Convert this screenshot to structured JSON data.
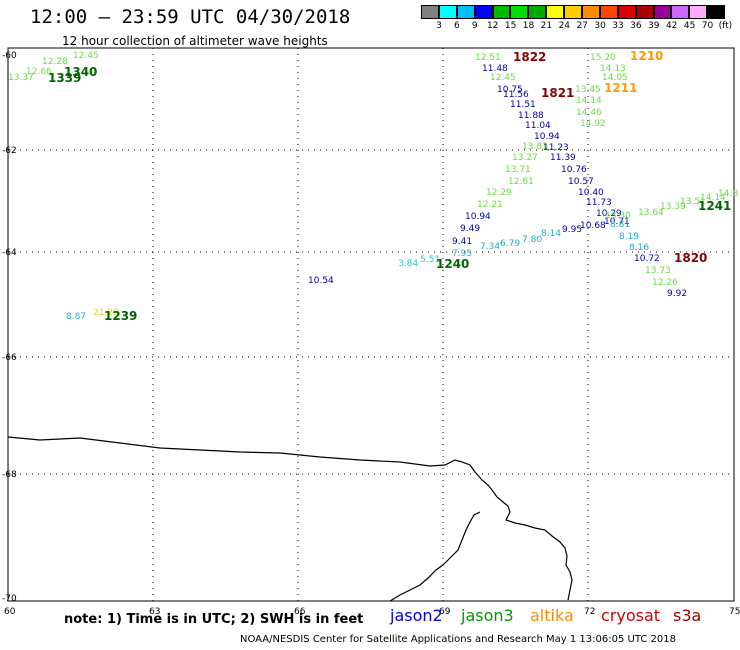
{
  "header": {
    "title": "12:00 – 23:59 UTC 04/30/2018",
    "subtitle": "12 hour collection of altimeter wave heights"
  },
  "colorbar": {
    "colors": [
      "#808080",
      "#00ffff",
      "#00bfff",
      "#0000ff",
      "#00bb00",
      "#00dd00",
      "#00aa00",
      "#ffff00",
      "#ffcc00",
      "#ff8c00",
      "#ff4400",
      "#dd0000",
      "#aa0000",
      "#990099",
      "#cc66ff",
      "#ffaaff",
      "#000000"
    ],
    "ticks": [
      "3",
      "6",
      "9",
      "12",
      "15",
      "18",
      "21",
      "24",
      "27",
      "30",
      "33",
      "36",
      "39",
      "42",
      "45",
      "70",
      "(ft)"
    ]
  },
  "axes": {
    "lat_labels": [
      "-60",
      "-62",
      "-64",
      "-66",
      "-68",
      "-70"
    ],
    "lon_labels": [
      "60",
      "63",
      "66",
      "69",
      "72",
      "75"
    ]
  },
  "legend": {
    "note": "note: 1) Time is in UTC; 2) SWH is in feet",
    "satellites": [
      {
        "name": "jason2",
        "color": "#0000dd"
      },
      {
        "name": "jason3",
        "color": "#009900"
      },
      {
        "name": "altika",
        "color": "#ff8800"
      },
      {
        "name": "cryosat",
        "color": "#cc0000"
      },
      {
        "name": "s3a",
        "color": "#990000"
      }
    ]
  },
  "footer": "NOAA/NESDIS Center for Satellite Applications and Research    May  1 13:06:05 UTC 2018",
  "observations": [
    {
      "text": "12.45",
      "color": "#66dd44"
    },
    {
      "text": "12.28",
      "color": "#66dd44"
    },
    {
      "text": "12.66",
      "color": "#66dd44"
    },
    {
      "text": "13.37",
      "color": "#66dd44"
    },
    {
      "text": "1340",
      "color": "#006600",
      "kind": "time"
    },
    {
      "text": "1339",
      "color": "#006600",
      "kind": "time"
    },
    {
      "text": "12.51",
      "color": "#66dd44"
    },
    {
      "text": "1822",
      "color": "#880000",
      "kind": "time"
    },
    {
      "text": "11.48",
      "color": "#0000aa"
    },
    {
      "text": "12.45",
      "color": "#66dd44"
    },
    {
      "text": "10.75",
      "color": "#0000aa"
    },
    {
      "text": "11.56",
      "color": "#0000aa"
    },
    {
      "text": "1821",
      "color": "#880000",
      "kind": "time"
    },
    {
      "text": "11.51",
      "color": "#0000aa"
    },
    {
      "text": "11.88",
      "color": "#0000aa"
    },
    {
      "text": "11.04",
      "color": "#0000aa"
    },
    {
      "text": "10.94",
      "color": "#0000aa"
    },
    {
      "text": "13.81",
      "color": "#66dd44"
    },
    {
      "text": "11.23",
      "color": "#0000aa"
    },
    {
      "text": "13.27",
      "color": "#66dd44"
    },
    {
      "text": "11.39",
      "color": "#0000aa"
    },
    {
      "text": "13.71",
      "color": "#66dd44"
    },
    {
      "text": "10.76",
      "color": "#0000aa"
    },
    {
      "text": "12.61",
      "color": "#66dd44"
    },
    {
      "text": "10.57",
      "color": "#0000aa"
    },
    {
      "text": "12.29",
      "color": "#66dd44"
    },
    {
      "text": "10.40",
      "color": "#0000aa"
    },
    {
      "text": "12.21",
      "color": "#66dd44"
    },
    {
      "text": "11.73",
      "color": "#0000aa"
    },
    {
      "text": "10.94",
      "color": "#0000aa"
    },
    {
      "text": "10.29",
      "color": "#0000aa"
    },
    {
      "text": "9.49",
      "color": "#0000aa"
    },
    {
      "text": "10.71",
      "color": "#0000aa"
    },
    {
      "text": "9.41",
      "color": "#0000aa"
    },
    {
      "text": "7.95",
      "color": "#22aacc"
    },
    {
      "text": "7.34",
      "color": "#22aacc"
    },
    {
      "text": "6.79",
      "color": "#22aacc"
    },
    {
      "text": "7.80",
      "color": "#22aacc"
    },
    {
      "text": "8.14",
      "color": "#22aacc"
    },
    {
      "text": "9.95",
      "color": "#0000aa"
    },
    {
      "text": "10.68",
      "color": "#0000aa"
    },
    {
      "text": "8.81",
      "color": "#22aacc"
    },
    {
      "text": "8.19",
      "color": "#22aacc"
    },
    {
      "text": "8.16",
      "color": "#22aacc"
    },
    {
      "text": "10.72",
      "color": "#0000aa"
    },
    {
      "text": "1820",
      "color": "#880000",
      "kind": "time"
    },
    {
      "text": "13.73",
      "color": "#66dd44"
    },
    {
      "text": "12.26",
      "color": "#66dd44"
    },
    {
      "text": "9.92",
      "color": "#0000aa"
    },
    {
      "text": "15.20",
      "color": "#66dd44"
    },
    {
      "text": "1210",
      "color": "#ff9900",
      "kind": "time"
    },
    {
      "text": "14.13",
      "color": "#66dd44"
    },
    {
      "text": "14.05",
      "color": "#66dd44"
    },
    {
      "text": "13.45",
      "color": "#66dd44"
    },
    {
      "text": "1211",
      "color": "#ff9900",
      "kind": "time"
    },
    {
      "text": "14.14",
      "color": "#66dd44"
    },
    {
      "text": "14.46",
      "color": "#66dd44"
    },
    {
      "text": "14.92",
      "color": "#66dd44"
    },
    {
      "text": "13.30",
      "color": "#66dd44"
    },
    {
      "text": "13.64",
      "color": "#66dd44"
    },
    {
      "text": "13.39",
      "color": "#66dd44"
    },
    {
      "text": "13.51",
      "color": "#66dd44"
    },
    {
      "text": "14.14",
      "color": "#66dd44"
    },
    {
      "text": "14.8",
      "color": "#66dd44"
    },
    {
      "text": "1241",
      "color": "#006600",
      "kind": "time"
    },
    {
      "text": "3.84",
      "color": "#22cccc"
    },
    {
      "text": "5.51",
      "color": "#22cccc"
    },
    {
      "text": "1240",
      "color": "#006600",
      "kind": "time"
    },
    {
      "text": "10.54",
      "color": "#0000aa"
    },
    {
      "text": "8.87",
      "color": "#22aacc"
    },
    {
      "text": "21.20",
      "color": "#dddd00"
    },
    {
      "text": "1239",
      "color": "#006600",
      "kind": "time"
    }
  ]
}
